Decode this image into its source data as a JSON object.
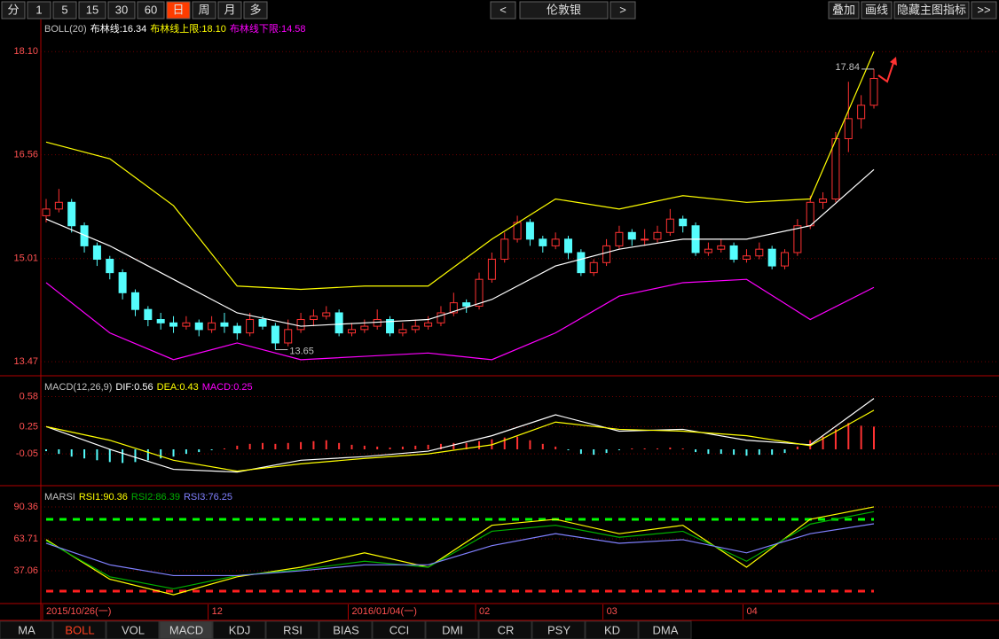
{
  "toolbar": {
    "periods": [
      "分",
      "1",
      "5",
      "15",
      "30",
      "60",
      "日",
      "周",
      "月",
      "多"
    ],
    "active_period": 6,
    "prev": "<",
    "symbol": "伦敦银",
    "next": ">",
    "actions": [
      "叠加",
      "画线",
      "隐藏主图指标",
      ">>"
    ]
  },
  "chart_data": [
    {
      "type": "candlestick",
      "name": "BOLL(20)",
      "readout": [
        {
          "text": "布林线:",
          "value": "16.34",
          "color": "#ffffff"
        },
        {
          "text": "布林线上限:",
          "value": "18.10",
          "color": "#ffff00"
        },
        {
          "text": "布林线下限:",
          "value": "14.58",
          "color": "#ff00ff"
        }
      ],
      "ylim": [
        13.26,
        18.58
      ],
      "yticks": [
        {
          "value": 18.1,
          "label": "18.10"
        },
        16.56,
        15.01,
        13.47
      ],
      "candles": [
        [
          15.65,
          15.9,
          15.55,
          15.75
        ],
        [
          15.75,
          16.05,
          15.7,
          15.85
        ],
        [
          15.85,
          15.9,
          15.4,
          15.5
        ],
        [
          15.5,
          15.55,
          15.1,
          15.2
        ],
        [
          15.2,
          15.25,
          14.9,
          15.0
        ],
        [
          15.0,
          15.05,
          14.7,
          14.8
        ],
        [
          14.8,
          14.85,
          14.4,
          14.5
        ],
        [
          14.5,
          14.55,
          14.15,
          14.25
        ],
        [
          14.25,
          14.3,
          14.0,
          14.1
        ],
        [
          14.1,
          14.2,
          13.95,
          14.05
        ],
        [
          14.05,
          14.15,
          13.9,
          14.0
        ],
        [
          14.0,
          14.15,
          13.95,
          14.05
        ],
        [
          14.05,
          14.1,
          13.85,
          13.95
        ],
        [
          13.95,
          14.15,
          13.9,
          14.05
        ],
        [
          14.05,
          14.2,
          13.9,
          14.0
        ],
        [
          14.0,
          14.05,
          13.8,
          13.9
        ],
        [
          13.9,
          14.2,
          13.85,
          14.1
        ],
        [
          14.1,
          14.15,
          13.95,
          14.0
        ],
        [
          14.0,
          14.05,
          13.65,
          13.75
        ],
        [
          13.75,
          14.1,
          13.7,
          13.95
        ],
        [
          13.95,
          14.2,
          13.9,
          14.1
        ],
        [
          14.1,
          14.25,
          14.0,
          14.15
        ],
        [
          14.15,
          14.3,
          14.1,
          14.2
        ],
        [
          14.2,
          14.25,
          13.85,
          13.9
        ],
        [
          13.9,
          14.05,
          13.85,
          13.95
        ],
        [
          13.95,
          14.1,
          13.9,
          14.0
        ],
        [
          14.0,
          14.25,
          13.95,
          14.1
        ],
        [
          14.1,
          14.15,
          13.85,
          13.9
        ],
        [
          13.9,
          14.05,
          13.85,
          13.95
        ],
        [
          13.95,
          14.1,
          13.9,
          14.0
        ],
        [
          14.0,
          14.15,
          13.95,
          14.05
        ],
        [
          14.05,
          14.3,
          14.0,
          14.2
        ],
        [
          14.2,
          14.5,
          14.15,
          14.35
        ],
        [
          14.35,
          14.4,
          14.2,
          14.3
        ],
        [
          14.3,
          14.8,
          14.25,
          14.7
        ],
        [
          14.7,
          15.1,
          14.65,
          15.0
        ],
        [
          15.0,
          15.4,
          14.95,
          15.3
        ],
        [
          15.3,
          15.65,
          15.25,
          15.55
        ],
        [
          15.55,
          15.6,
          15.2,
          15.3
        ],
        [
          15.3,
          15.35,
          15.1,
          15.2
        ],
        [
          15.2,
          15.4,
          15.15,
          15.3
        ],
        [
          15.3,
          15.35,
          15.0,
          15.1
        ],
        [
          15.1,
          15.15,
          14.75,
          14.8
        ],
        [
          14.8,
          15.0,
          14.75,
          14.95
        ],
        [
          14.95,
          15.3,
          14.9,
          15.2
        ],
        [
          15.2,
          15.5,
          15.15,
          15.4
        ],
        [
          15.4,
          15.45,
          15.2,
          15.3
        ],
        [
          15.3,
          15.45,
          15.2,
          15.3
        ],
        [
          15.3,
          15.5,
          15.25,
          15.4
        ],
        [
          15.4,
          15.75,
          15.35,
          15.6
        ],
        [
          15.6,
          15.65,
          15.4,
          15.5
        ],
        [
          15.5,
          15.55,
          15.05,
          15.1
        ],
        [
          15.1,
          15.25,
          15.05,
          15.15
        ],
        [
          15.15,
          15.3,
          15.1,
          15.2
        ],
        [
          15.2,
          15.25,
          14.95,
          15.0
        ],
        [
          15.0,
          15.15,
          14.95,
          15.05
        ],
        [
          15.05,
          15.25,
          15.0,
          15.15
        ],
        [
          15.15,
          15.2,
          14.85,
          14.9
        ],
        [
          14.9,
          15.15,
          14.85,
          15.1
        ],
        [
          15.1,
          15.6,
          15.05,
          15.5
        ],
        [
          15.5,
          15.95,
          15.45,
          15.85
        ],
        [
          15.85,
          16.0,
          15.75,
          15.9
        ],
        [
          15.9,
          16.9,
          15.85,
          16.8
        ],
        [
          16.8,
          17.65,
          16.6,
          17.1
        ],
        [
          17.1,
          17.45,
          16.95,
          17.3
        ],
        [
          17.3,
          17.84,
          17.25,
          17.7
        ]
      ],
      "up_color": "#ff3232",
      "down_color": "#54fcfc",
      "x": [
        0,
        5,
        10,
        15,
        20,
        25,
        30,
        35,
        40,
        45,
        50,
        55,
        60,
        65
      ],
      "series": [
        {
          "color": "#ffffff",
          "values": [
            15.6,
            15.2,
            14.7,
            14.2,
            14.0,
            14.05,
            14.1,
            14.4,
            14.9,
            15.15,
            15.3,
            15.3,
            15.5,
            16.34
          ]
        },
        {
          "color": "#ffff00",
          "values": [
            16.75,
            16.5,
            15.8,
            14.6,
            14.55,
            14.6,
            14.6,
            15.3,
            15.9,
            15.75,
            15.95,
            15.85,
            15.9,
            18.1
          ]
        },
        {
          "color": "#ff00ff",
          "values": [
            14.65,
            13.9,
            13.5,
            13.75,
            13.5,
            13.55,
            13.6,
            13.5,
            13.9,
            14.45,
            14.65,
            14.7,
            14.1,
            14.58
          ]
        }
      ],
      "annotations": [
        {
          "index": 18,
          "value": 13.65
        },
        {
          "index": 65,
          "value": 17.84
        }
      ]
    },
    {
      "type": "macd",
      "name": "MACD(12,26,9)",
      "readout": [
        {
          "text": "DIF:",
          "value": "0.56",
          "color": "#ffffff"
        },
        {
          "text": "DEA:",
          "value": "0.43",
          "color": "#ffff00"
        },
        {
          "text": "MACD:",
          "value": "0.25",
          "color": "#ff00ff"
        }
      ],
      "ylim": [
        -0.4,
        0.79
      ],
      "yticks": [
        0.58,
        0.25,
        -0.05
      ],
      "histogram": [
        -0.02,
        -0.05,
        -0.08,
        -0.1,
        -0.12,
        -0.14,
        -0.15,
        -0.14,
        -0.12,
        -0.1,
        -0.08,
        -0.05,
        -0.03,
        -0.01,
        0.01,
        0.04,
        0.06,
        0.07,
        0.06,
        0.07,
        0.08,
        0.09,
        0.1,
        0.07,
        0.05,
        0.04,
        0.03,
        0.02,
        0.03,
        0.04,
        0.05,
        0.06,
        0.07,
        0.07,
        0.09,
        0.11,
        0.13,
        0.14,
        0.1,
        0.06,
        0.03,
        -0.01,
        -0.05,
        -0.06,
        -0.04,
        -0.01,
        0.01,
        0.01,
        0.01,
        0.02,
        0.01,
        -0.03,
        -0.05,
        -0.05,
        -0.06,
        -0.07,
        -0.06,
        -0.06,
        -0.04,
        0.03,
        0.1,
        0.14,
        0.22,
        0.29,
        0.26,
        0.25
      ],
      "up_color": "#ff3232",
      "down_color": "#54fcfc",
      "x": [
        0,
        5,
        10,
        15,
        20,
        25,
        30,
        35,
        40,
        45,
        50,
        55,
        60,
        65
      ],
      "series": [
        {
          "color": "#ffffff",
          "values": [
            0.25,
            0.0,
            -0.22,
            -0.25,
            -0.12,
            -0.08,
            -0.02,
            0.15,
            0.38,
            0.2,
            0.22,
            0.1,
            0.05,
            0.56
          ]
        },
        {
          "color": "#ffff00",
          "values": [
            0.25,
            0.1,
            -0.12,
            -0.24,
            -0.16,
            -0.1,
            -0.05,
            0.05,
            0.3,
            0.22,
            0.2,
            0.15,
            0.04,
            0.43
          ]
        }
      ]
    },
    {
      "type": "line",
      "name": "MARSI",
      "readout": [
        {
          "text": "RSI1:",
          "value": "90.36",
          "color": "#ffff00"
        },
        {
          "text": "RSI2:",
          "value": "86.39",
          "color": "#00b000"
        },
        {
          "text": "RSI3:",
          "value": "76.25",
          "color": "#8080ff"
        }
      ],
      "ylim": [
        10.4,
        106.6
      ],
      "yticks": [
        90.36,
        63.71,
        37.06
      ],
      "x": [
        0,
        5,
        10,
        15,
        20,
        25,
        30,
        35,
        40,
        45,
        50,
        55,
        60,
        65
      ],
      "series": [
        {
          "color": "#ffff00",
          "values": [
            63,
            30,
            17,
            32,
            40,
            52,
            40,
            75,
            80,
            68,
            75,
            40,
            80,
            90.36
          ]
        },
        {
          "color": "#00b000",
          "values": [
            62,
            32,
            22,
            33,
            38,
            45,
            40,
            70,
            75,
            65,
            70,
            45,
            76,
            86.39
          ]
        },
        {
          "color": "#8080ff",
          "values": [
            60,
            42,
            33,
            33,
            37,
            42,
            42,
            58,
            68,
            60,
            63,
            52,
            68,
            76.25
          ]
        }
      ],
      "levels": [
        {
          "value": 80,
          "color": "#00ff00"
        },
        {
          "value": 20,
          "color": "#ff2020"
        }
      ]
    }
  ],
  "dates": [
    {
      "index": 0,
      "label": "2015/10/26(一)"
    },
    {
      "index": 13,
      "label": "12"
    },
    {
      "index": 24,
      "label": "2016/01/04(一)"
    },
    {
      "index": 34,
      "label": "02"
    },
    {
      "index": 44,
      "label": "03"
    },
    {
      "index": 55,
      "label": "04"
    }
  ],
  "tabs": [
    "MA",
    "BOLL",
    "VOL",
    "MACD",
    "KDJ",
    "RSI",
    "BIAS",
    "CCI",
    "DMI",
    "CR",
    "PSY",
    "KD",
    "DMA"
  ],
  "active_tab": 1,
  "selected_tab": 3
}
